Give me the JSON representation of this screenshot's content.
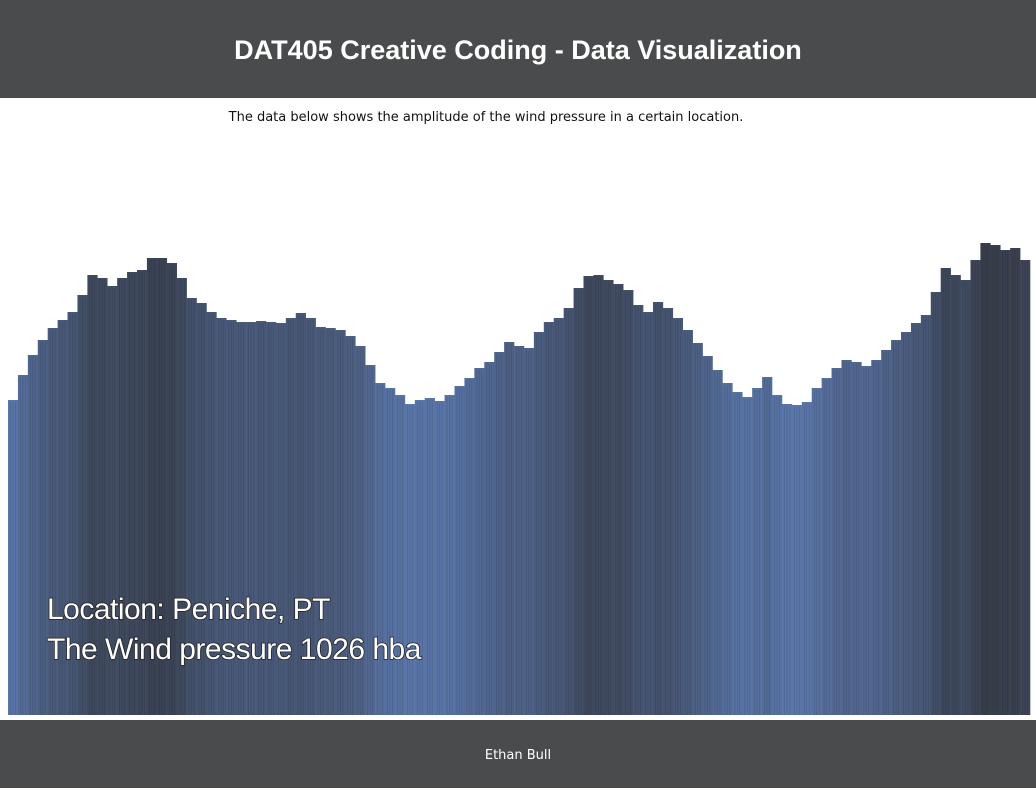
{
  "header": {
    "title": "DAT405 Creative Coding - Data Visualization"
  },
  "intro": "The data below shows the amplitude of the wind pressure in a certain location.",
  "chart_data": {
    "type": "bar",
    "values": [
      315,
      340,
      360,
      375,
      387,
      395,
      403,
      420,
      440,
      437,
      429,
      437,
      443,
      445,
      457,
      457,
      452,
      437,
      417,
      412,
      403,
      397,
      395,
      393,
      393,
      394,
      393,
      392,
      397,
      402,
      397,
      388,
      387,
      385,
      379,
      369,
      350,
      332,
      327,
      320,
      311,
      315,
      317,
      314,
      320,
      329,
      337,
      347,
      353,
      363,
      373,
      369,
      367,
      383,
      393,
      397,
      407,
      427,
      439,
      440,
      435,
      431,
      425,
      410,
      403,
      413,
      407,
      397,
      385,
      372,
      359,
      345,
      332,
      323,
      318,
      327,
      338,
      320,
      311,
      310,
      313,
      327,
      337,
      347,
      355,
      353,
      349,
      355,
      365,
      375,
      383,
      392,
      400,
      423,
      447,
      440,
      435,
      455,
      472,
      470,
      465,
      467,
      455
    ],
    "colors": [
      "#5a76a9",
      "#383e4b"
    ]
  },
  "overlay": [
    "Location: Peniche, PT",
    "The Wind pressure 1026 hba"
  ],
  "footer": "Ethan Bull"
}
